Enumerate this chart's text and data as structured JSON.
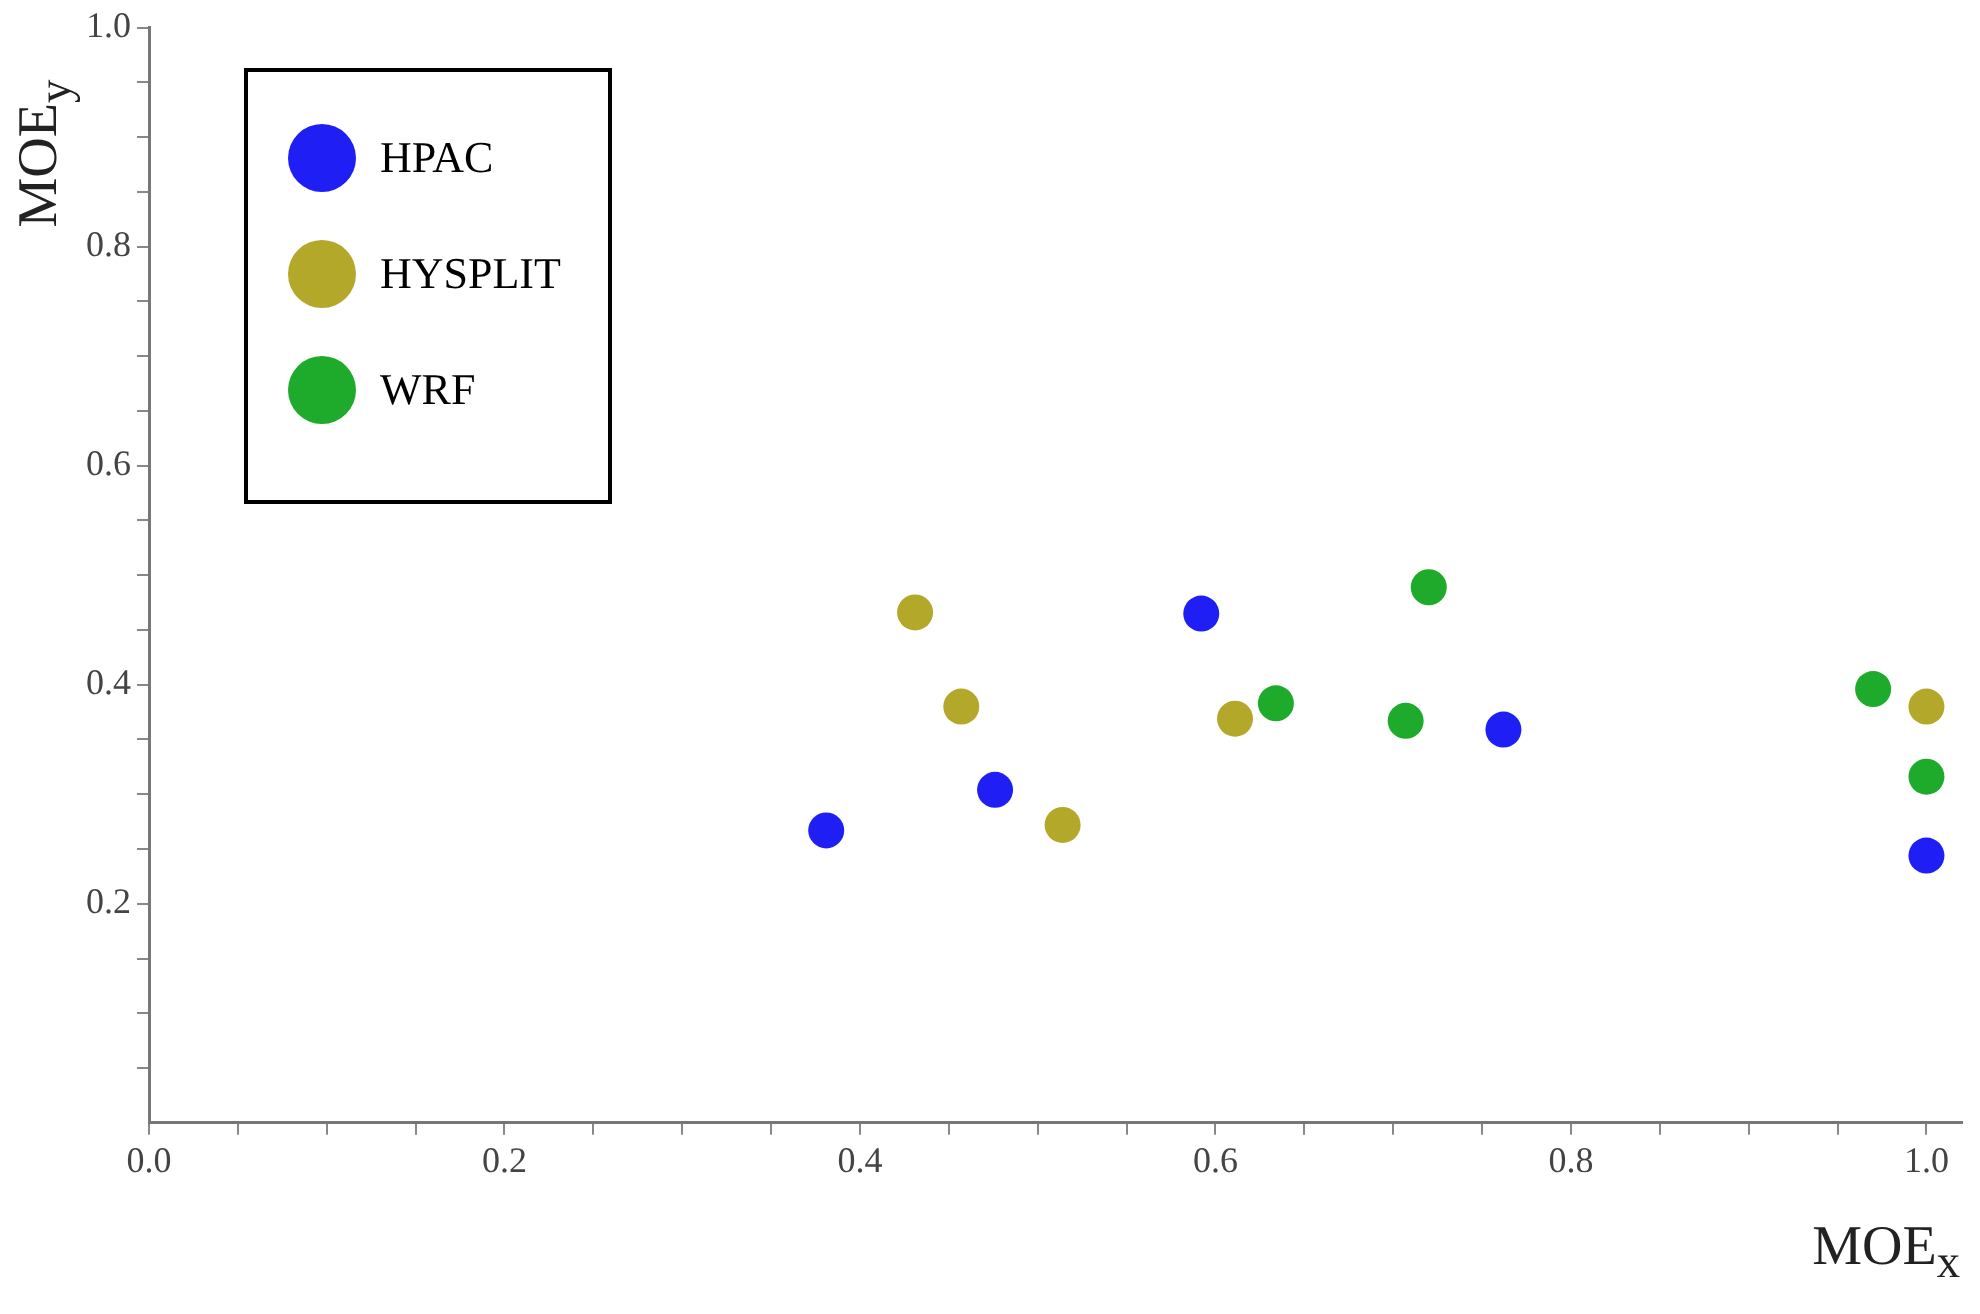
{
  "chart_data": {
    "type": "scatter",
    "xlabel": "MOE$_{x}$",
    "ylabel": "MOE$_{y}$",
    "xlim": [
      0,
      1.02
    ],
    "ylim": [
      0,
      1
    ],
    "xticks": [
      {
        "value": 0,
        "label": "0.0"
      },
      {
        "value": 0.05,
        "label": null
      },
      {
        "value": 0.1,
        "label": null
      },
      {
        "value": 0.15,
        "label": null
      },
      {
        "value": 0.2,
        "label": "0.2"
      },
      {
        "value": 0.25,
        "label": null
      },
      {
        "value": 0.3,
        "label": null
      },
      {
        "value": 0.35,
        "label": null
      },
      {
        "value": 0.4,
        "label": "0.4"
      },
      {
        "value": 0.45,
        "label": null
      },
      {
        "value": 0.5,
        "label": null
      },
      {
        "value": 0.55,
        "label": null
      },
      {
        "value": 0.6,
        "label": "0.6"
      },
      {
        "value": 0.65,
        "label": null
      },
      {
        "value": 0.7,
        "label": null
      },
      {
        "value": 0.75,
        "label": null
      },
      {
        "value": 0.8,
        "label": "0.8"
      },
      {
        "value": 0.85,
        "label": null
      },
      {
        "value": 0.9,
        "label": null
      },
      {
        "value": 0.95,
        "label": null
      },
      {
        "value": 1,
        "label": "1.0"
      }
    ],
    "yticks": [
      {
        "value": 0.05,
        "label": null
      },
      {
        "value": 0.1,
        "label": null
      },
      {
        "value": 0.15,
        "label": null
      },
      {
        "value": 0.2,
        "label": "0.2"
      },
      {
        "value": 0.25,
        "label": null
      },
      {
        "value": 0.3,
        "label": null
      },
      {
        "value": 0.35,
        "label": null
      },
      {
        "value": 0.4,
        "label": "0.4"
      },
      {
        "value": 0.45,
        "label": null
      },
      {
        "value": 0.5,
        "label": null
      },
      {
        "value": 0.55,
        "label": null
      },
      {
        "value": 0.6,
        "label": "0.6"
      },
      {
        "value": 0.65,
        "label": null
      },
      {
        "value": 0.7,
        "label": null
      },
      {
        "value": 0.75,
        "label": null
      },
      {
        "value": 0.8,
        "label": "0.8"
      },
      {
        "value": 0.85,
        "label": null
      },
      {
        "value": 0.9,
        "label": null
      },
      {
        "value": 0.95,
        "label": null
      },
      {
        "value": 1,
        "label": "1.0"
      }
    ],
    "grid": false,
    "legend": "top left",
    "marker": "circle",
    "series": [
      {
        "name": "HPAC",
        "color": "#1f1ff5",
        "x": [
          0.381,
          0.476,
          0.592,
          0.762,
          1.0
        ],
        "values": [
          0.267,
          0.304,
          0.465,
          0.359,
          0.244
        ]
      },
      {
        "name": "HYSPLIT",
        "color": "#b3a82a",
        "x": [
          0.431,
          0.457,
          0.514,
          0.611,
          1.0
        ],
        "values": [
          0.466,
          0.38,
          0.272,
          0.369,
          0.38
        ]
      },
      {
        "name": "WRF",
        "color": "#1eaa2a",
        "x": [
          0.634,
          0.707,
          0.72,
          0.97,
          1.0
        ],
        "values": [
          0.383,
          0.367,
          0.489,
          0.396,
          0.316
        ]
      }
    ]
  }
}
